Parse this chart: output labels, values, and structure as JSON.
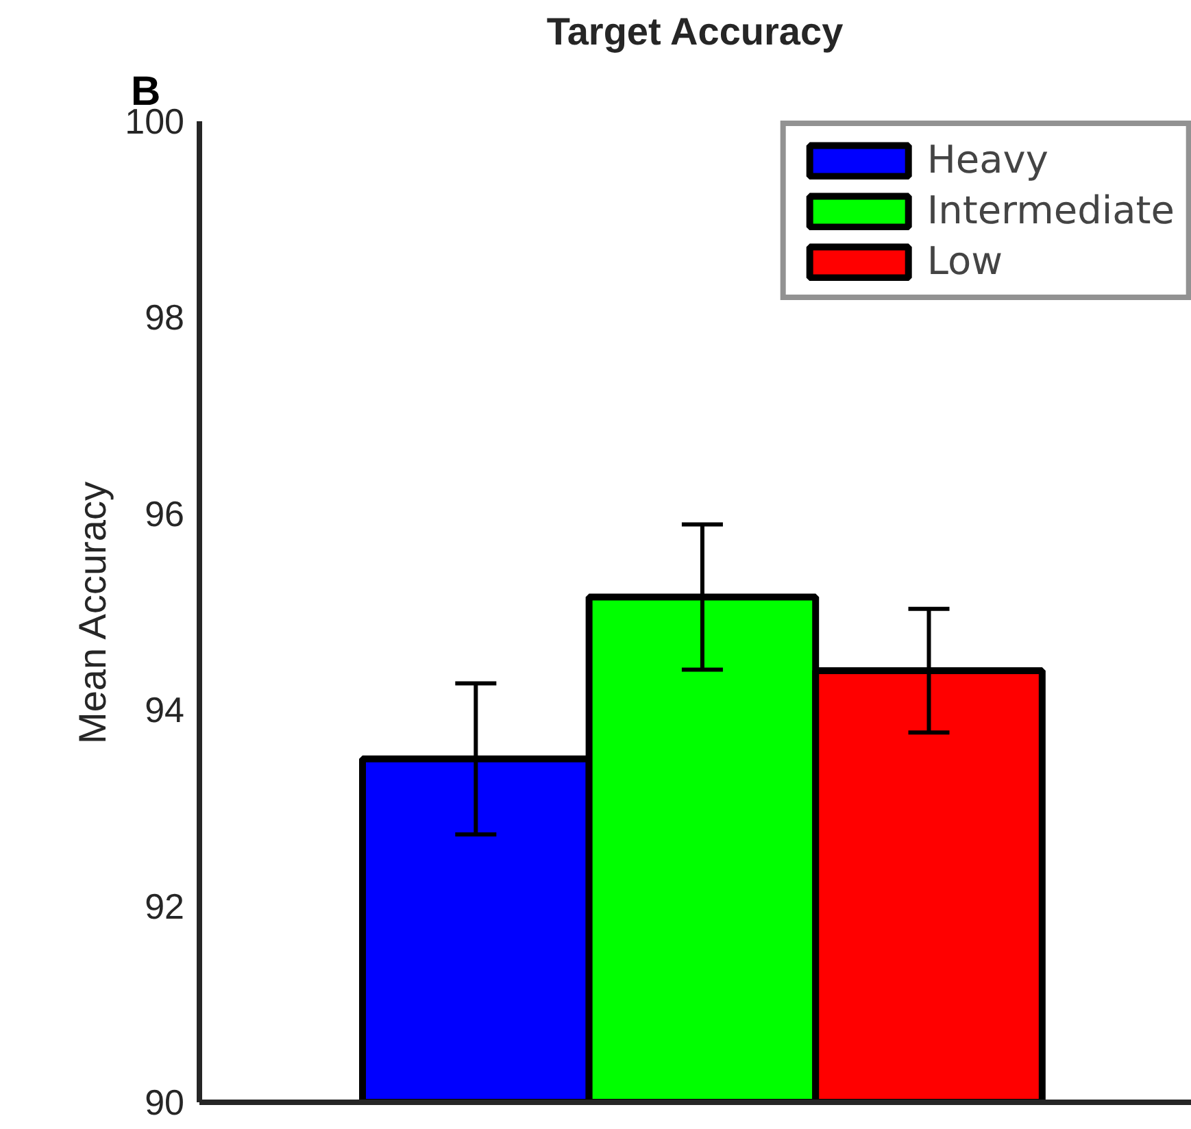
{
  "chart_data": {
    "type": "bar",
    "title": "Target Accuracy",
    "ylabel": "Mean Accuracy",
    "categories": [
      null
    ],
    "series": [
      {
        "name": "Heavy",
        "color": "#0000ff",
        "values": [
          93.5
        ],
        "errors": [
          0.77
        ]
      },
      {
        "name": "Intermediate",
        "color": "#00ff00",
        "values": [
          95.15
        ],
        "errors": [
          0.74
        ]
      },
      {
        "name": "Low",
        "color": "#ff0000",
        "values": [
          94.4
        ],
        "errors": [
          0.63
        ]
      }
    ],
    "ylim": [
      90,
      100
    ],
    "yticks": [
      90,
      92,
      94,
      96,
      98,
      100
    ],
    "tick_labels": "y",
    "grid": false,
    "legend": "top right",
    "annotations": [
      "B"
    ]
  }
}
